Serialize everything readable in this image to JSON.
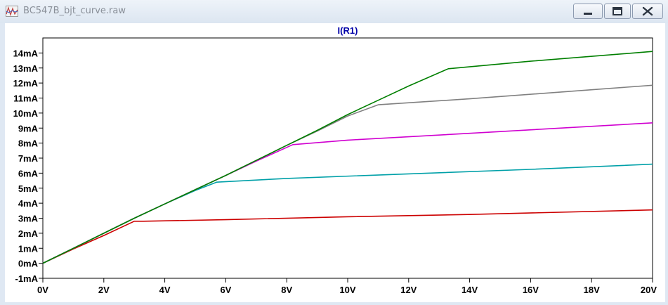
{
  "window": {
    "title": "BC547B_bjt_curve.raw",
    "buttons": {
      "minimize": "minimize-icon",
      "maximize": "maximize-icon",
      "close": "close-icon"
    }
  },
  "colors": {
    "background": "#ffffff",
    "axis": "#000000",
    "title": "#0000a8"
  },
  "chart_data": {
    "type": "line",
    "title": "I(R1)",
    "xlabel": "",
    "ylabel": "",
    "xlim": [
      0,
      20
    ],
    "ylim": [
      -1,
      15
    ],
    "grid": false,
    "x_ticks": [
      {
        "value": 0,
        "label": "0V"
      },
      {
        "value": 2,
        "label": "2V"
      },
      {
        "value": 4,
        "label": "4V"
      },
      {
        "value": 6,
        "label": "6V"
      },
      {
        "value": 8,
        "label": "8V"
      },
      {
        "value": 10,
        "label": "10V"
      },
      {
        "value": 12,
        "label": "12V"
      },
      {
        "value": 14,
        "label": "14V"
      },
      {
        "value": 16,
        "label": "16V"
      },
      {
        "value": 18,
        "label": "18V"
      },
      {
        "value": 20,
        "label": "20V"
      }
    ],
    "y_ticks": [
      {
        "value": -1,
        "label": "-1mA"
      },
      {
        "value": 0,
        "label": "0mA"
      },
      {
        "value": 1,
        "label": "1mA"
      },
      {
        "value": 2,
        "label": "2mA"
      },
      {
        "value": 3,
        "label": "3mA"
      },
      {
        "value": 4,
        "label": "4mA"
      },
      {
        "value": 5,
        "label": "5mA"
      },
      {
        "value": 6,
        "label": "6mA"
      },
      {
        "value": 7,
        "label": "7mA"
      },
      {
        "value": 8,
        "label": "8mA"
      },
      {
        "value": 9,
        "label": "9mA"
      },
      {
        "value": 10,
        "label": "10mA"
      },
      {
        "value": 11,
        "label": "11mA"
      },
      {
        "value": 12,
        "label": "12mA"
      },
      {
        "value": 13,
        "label": "13mA"
      },
      {
        "value": 14,
        "label": "14mA"
      }
    ],
    "series": [
      {
        "color": "#cc0000",
        "points": [
          [
            0,
            0
          ],
          [
            1,
            0.95
          ],
          [
            2,
            1.85
          ],
          [
            3,
            2.8
          ],
          [
            3.3,
            2.8
          ],
          [
            6,
            2.9
          ],
          [
            10,
            3.1
          ],
          [
            14,
            3.25
          ],
          [
            20,
            3.55
          ]
        ]
      },
      {
        "color": "#00a0a8",
        "points": [
          [
            0,
            0
          ],
          [
            1,
            1.0
          ],
          [
            2,
            2.0
          ],
          [
            3,
            3.0
          ],
          [
            4,
            3.95
          ],
          [
            5,
            4.85
          ],
          [
            5.7,
            5.4
          ],
          [
            8,
            5.65
          ],
          [
            12,
            5.95
          ],
          [
            16,
            6.25
          ],
          [
            20,
            6.6
          ]
        ]
      },
      {
        "color": "#d000d0",
        "points": [
          [
            0,
            0
          ],
          [
            1,
            1.0
          ],
          [
            2,
            2.0
          ],
          [
            3,
            3.0
          ],
          [
            4,
            3.95
          ],
          [
            5,
            4.9
          ],
          [
            6,
            5.85
          ],
          [
            7,
            6.8
          ],
          [
            8.2,
            7.9
          ],
          [
            10,
            8.2
          ],
          [
            14,
            8.65
          ],
          [
            20,
            9.35
          ]
        ]
      },
      {
        "color": "#808080",
        "points": [
          [
            0,
            0
          ],
          [
            1,
            1.0
          ],
          [
            2,
            2.0
          ],
          [
            3,
            3.0
          ],
          [
            4,
            3.95
          ],
          [
            5,
            4.9
          ],
          [
            6,
            5.85
          ],
          [
            7,
            6.85
          ],
          [
            8,
            7.85
          ],
          [
            9,
            8.8
          ],
          [
            10,
            9.8
          ],
          [
            11,
            10.55
          ],
          [
            14,
            10.95
          ],
          [
            17,
            11.4
          ],
          [
            20,
            11.85
          ]
        ]
      },
      {
        "color": "#007f00",
        "points": [
          [
            0,
            0
          ],
          [
            1,
            1.0
          ],
          [
            2,
            2.0
          ],
          [
            3,
            3.0
          ],
          [
            4,
            3.95
          ],
          [
            5,
            4.9
          ],
          [
            6,
            5.85
          ],
          [
            7,
            6.85
          ],
          [
            8,
            7.85
          ],
          [
            9,
            8.85
          ],
          [
            10,
            9.9
          ],
          [
            11,
            10.85
          ],
          [
            12,
            11.8
          ],
          [
            13.3,
            12.95
          ],
          [
            16,
            13.45
          ],
          [
            20,
            14.1
          ]
        ]
      }
    ]
  }
}
